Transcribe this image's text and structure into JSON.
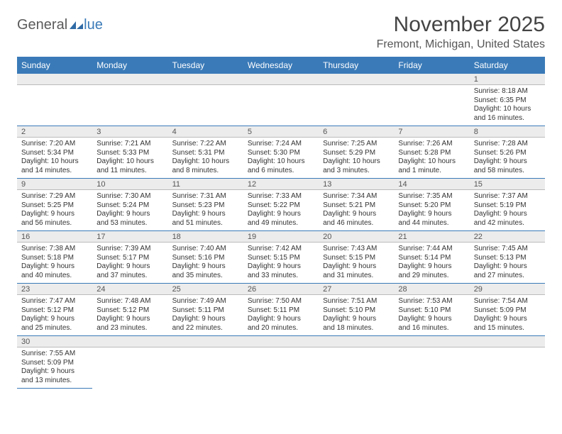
{
  "logo": {
    "part1": "General",
    "part2": "lue"
  },
  "title": "November 2025",
  "location": "Fremont, Michigan, United States",
  "colors": {
    "header_bg": "#3a7ab8",
    "header_text": "#ffffff",
    "daynum_bg": "#ececec",
    "border": "#3a7ab8",
    "text": "#333333"
  },
  "day_headers": [
    "Sunday",
    "Monday",
    "Tuesday",
    "Wednesday",
    "Thursday",
    "Friday",
    "Saturday"
  ],
  "weeks": [
    [
      null,
      null,
      null,
      null,
      null,
      null,
      {
        "n": "1",
        "sr": "Sunrise: 8:18 AM",
        "ss": "Sunset: 6:35 PM",
        "d1": "Daylight: 10 hours",
        "d2": "and 16 minutes."
      }
    ],
    [
      {
        "n": "2",
        "sr": "Sunrise: 7:20 AM",
        "ss": "Sunset: 5:34 PM",
        "d1": "Daylight: 10 hours",
        "d2": "and 14 minutes."
      },
      {
        "n": "3",
        "sr": "Sunrise: 7:21 AM",
        "ss": "Sunset: 5:33 PM",
        "d1": "Daylight: 10 hours",
        "d2": "and 11 minutes."
      },
      {
        "n": "4",
        "sr": "Sunrise: 7:22 AM",
        "ss": "Sunset: 5:31 PM",
        "d1": "Daylight: 10 hours",
        "d2": "and 8 minutes."
      },
      {
        "n": "5",
        "sr": "Sunrise: 7:24 AM",
        "ss": "Sunset: 5:30 PM",
        "d1": "Daylight: 10 hours",
        "d2": "and 6 minutes."
      },
      {
        "n": "6",
        "sr": "Sunrise: 7:25 AM",
        "ss": "Sunset: 5:29 PM",
        "d1": "Daylight: 10 hours",
        "d2": "and 3 minutes."
      },
      {
        "n": "7",
        "sr": "Sunrise: 7:26 AM",
        "ss": "Sunset: 5:28 PM",
        "d1": "Daylight: 10 hours",
        "d2": "and 1 minute."
      },
      {
        "n": "8",
        "sr": "Sunrise: 7:28 AM",
        "ss": "Sunset: 5:26 PM",
        "d1": "Daylight: 9 hours",
        "d2": "and 58 minutes."
      }
    ],
    [
      {
        "n": "9",
        "sr": "Sunrise: 7:29 AM",
        "ss": "Sunset: 5:25 PM",
        "d1": "Daylight: 9 hours",
        "d2": "and 56 minutes."
      },
      {
        "n": "10",
        "sr": "Sunrise: 7:30 AM",
        "ss": "Sunset: 5:24 PM",
        "d1": "Daylight: 9 hours",
        "d2": "and 53 minutes."
      },
      {
        "n": "11",
        "sr": "Sunrise: 7:31 AM",
        "ss": "Sunset: 5:23 PM",
        "d1": "Daylight: 9 hours",
        "d2": "and 51 minutes."
      },
      {
        "n": "12",
        "sr": "Sunrise: 7:33 AM",
        "ss": "Sunset: 5:22 PM",
        "d1": "Daylight: 9 hours",
        "d2": "and 49 minutes."
      },
      {
        "n": "13",
        "sr": "Sunrise: 7:34 AM",
        "ss": "Sunset: 5:21 PM",
        "d1": "Daylight: 9 hours",
        "d2": "and 46 minutes."
      },
      {
        "n": "14",
        "sr": "Sunrise: 7:35 AM",
        "ss": "Sunset: 5:20 PM",
        "d1": "Daylight: 9 hours",
        "d2": "and 44 minutes."
      },
      {
        "n": "15",
        "sr": "Sunrise: 7:37 AM",
        "ss": "Sunset: 5:19 PM",
        "d1": "Daylight: 9 hours",
        "d2": "and 42 minutes."
      }
    ],
    [
      {
        "n": "16",
        "sr": "Sunrise: 7:38 AM",
        "ss": "Sunset: 5:18 PM",
        "d1": "Daylight: 9 hours",
        "d2": "and 40 minutes."
      },
      {
        "n": "17",
        "sr": "Sunrise: 7:39 AM",
        "ss": "Sunset: 5:17 PM",
        "d1": "Daylight: 9 hours",
        "d2": "and 37 minutes."
      },
      {
        "n": "18",
        "sr": "Sunrise: 7:40 AM",
        "ss": "Sunset: 5:16 PM",
        "d1": "Daylight: 9 hours",
        "d2": "and 35 minutes."
      },
      {
        "n": "19",
        "sr": "Sunrise: 7:42 AM",
        "ss": "Sunset: 5:15 PM",
        "d1": "Daylight: 9 hours",
        "d2": "and 33 minutes."
      },
      {
        "n": "20",
        "sr": "Sunrise: 7:43 AM",
        "ss": "Sunset: 5:15 PM",
        "d1": "Daylight: 9 hours",
        "d2": "and 31 minutes."
      },
      {
        "n": "21",
        "sr": "Sunrise: 7:44 AM",
        "ss": "Sunset: 5:14 PM",
        "d1": "Daylight: 9 hours",
        "d2": "and 29 minutes."
      },
      {
        "n": "22",
        "sr": "Sunrise: 7:45 AM",
        "ss": "Sunset: 5:13 PM",
        "d1": "Daylight: 9 hours",
        "d2": "and 27 minutes."
      }
    ],
    [
      {
        "n": "23",
        "sr": "Sunrise: 7:47 AM",
        "ss": "Sunset: 5:12 PM",
        "d1": "Daylight: 9 hours",
        "d2": "and 25 minutes."
      },
      {
        "n": "24",
        "sr": "Sunrise: 7:48 AM",
        "ss": "Sunset: 5:12 PM",
        "d1": "Daylight: 9 hours",
        "d2": "and 23 minutes."
      },
      {
        "n": "25",
        "sr": "Sunrise: 7:49 AM",
        "ss": "Sunset: 5:11 PM",
        "d1": "Daylight: 9 hours",
        "d2": "and 22 minutes."
      },
      {
        "n": "26",
        "sr": "Sunrise: 7:50 AM",
        "ss": "Sunset: 5:11 PM",
        "d1": "Daylight: 9 hours",
        "d2": "and 20 minutes."
      },
      {
        "n": "27",
        "sr": "Sunrise: 7:51 AM",
        "ss": "Sunset: 5:10 PM",
        "d1": "Daylight: 9 hours",
        "d2": "and 18 minutes."
      },
      {
        "n": "28",
        "sr": "Sunrise: 7:53 AM",
        "ss": "Sunset: 5:10 PM",
        "d1": "Daylight: 9 hours",
        "d2": "and 16 minutes."
      },
      {
        "n": "29",
        "sr": "Sunrise: 7:54 AM",
        "ss": "Sunset: 5:09 PM",
        "d1": "Daylight: 9 hours",
        "d2": "and 15 minutes."
      }
    ],
    [
      {
        "n": "30",
        "sr": "Sunrise: 7:55 AM",
        "ss": "Sunset: 5:09 PM",
        "d1": "Daylight: 9 hours",
        "d2": "and 13 minutes."
      },
      null,
      null,
      null,
      null,
      null,
      null
    ]
  ]
}
